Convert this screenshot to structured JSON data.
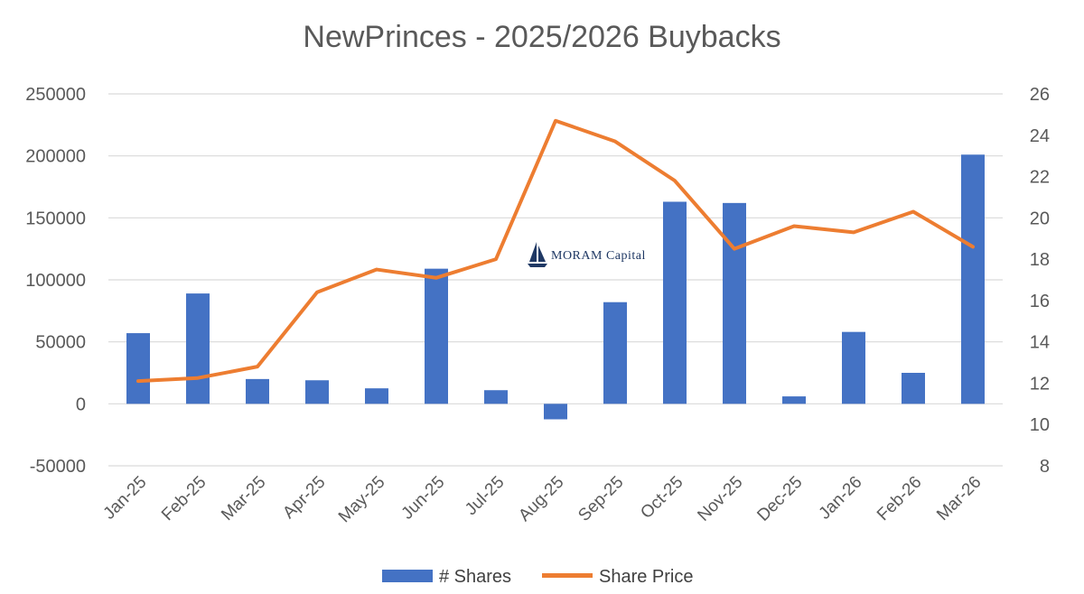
{
  "chart_data": {
    "type": "bar+line",
    "title": "NewPrinces - 2025/2026 Buybacks",
    "categories": [
      "Jan-25",
      "Feb-25",
      "Mar-25",
      "Apr-25",
      "May-25",
      "Jun-25",
      "Jul-25",
      "Aug-25",
      "Sep-25",
      "Oct-25",
      "Nov-25",
      "Dec-25",
      "Jan-26",
      "Feb-26",
      "Mar-26"
    ],
    "series": [
      {
        "name": "# Shares",
        "type": "bar",
        "axis": "left",
        "color": "#4472c4",
        "values": [
          57000,
          89000,
          20000,
          19000,
          12500,
          109000,
          11000,
          -12500,
          82000,
          163000,
          162000,
          6000,
          58000,
          25000,
          201000
        ]
      },
      {
        "name": "Share Price",
        "type": "line",
        "axis": "right",
        "color": "#ed7d31",
        "values": [
          12.1,
          12.25,
          12.8,
          16.4,
          17.5,
          17.1,
          18.0,
          24.7,
          23.7,
          21.8,
          18.5,
          19.6,
          19.3,
          20.3,
          18.6
        ]
      }
    ],
    "y_left": {
      "ylim": [
        -50000,
        250000
      ],
      "ticks": [
        "250000",
        "200000",
        "150000",
        "100000",
        "50000",
        "0",
        "-50000"
      ]
    },
    "y_right": {
      "ylim": [
        8,
        26
      ],
      "ticks": [
        "26",
        "24",
        "22",
        "20",
        "18",
        "16",
        "14",
        "12",
        "10",
        "8"
      ]
    },
    "grid": true,
    "legend_position": "bottom"
  },
  "watermark": {
    "text": "MORAM Capital",
    "icon": "sailboat-icon"
  }
}
